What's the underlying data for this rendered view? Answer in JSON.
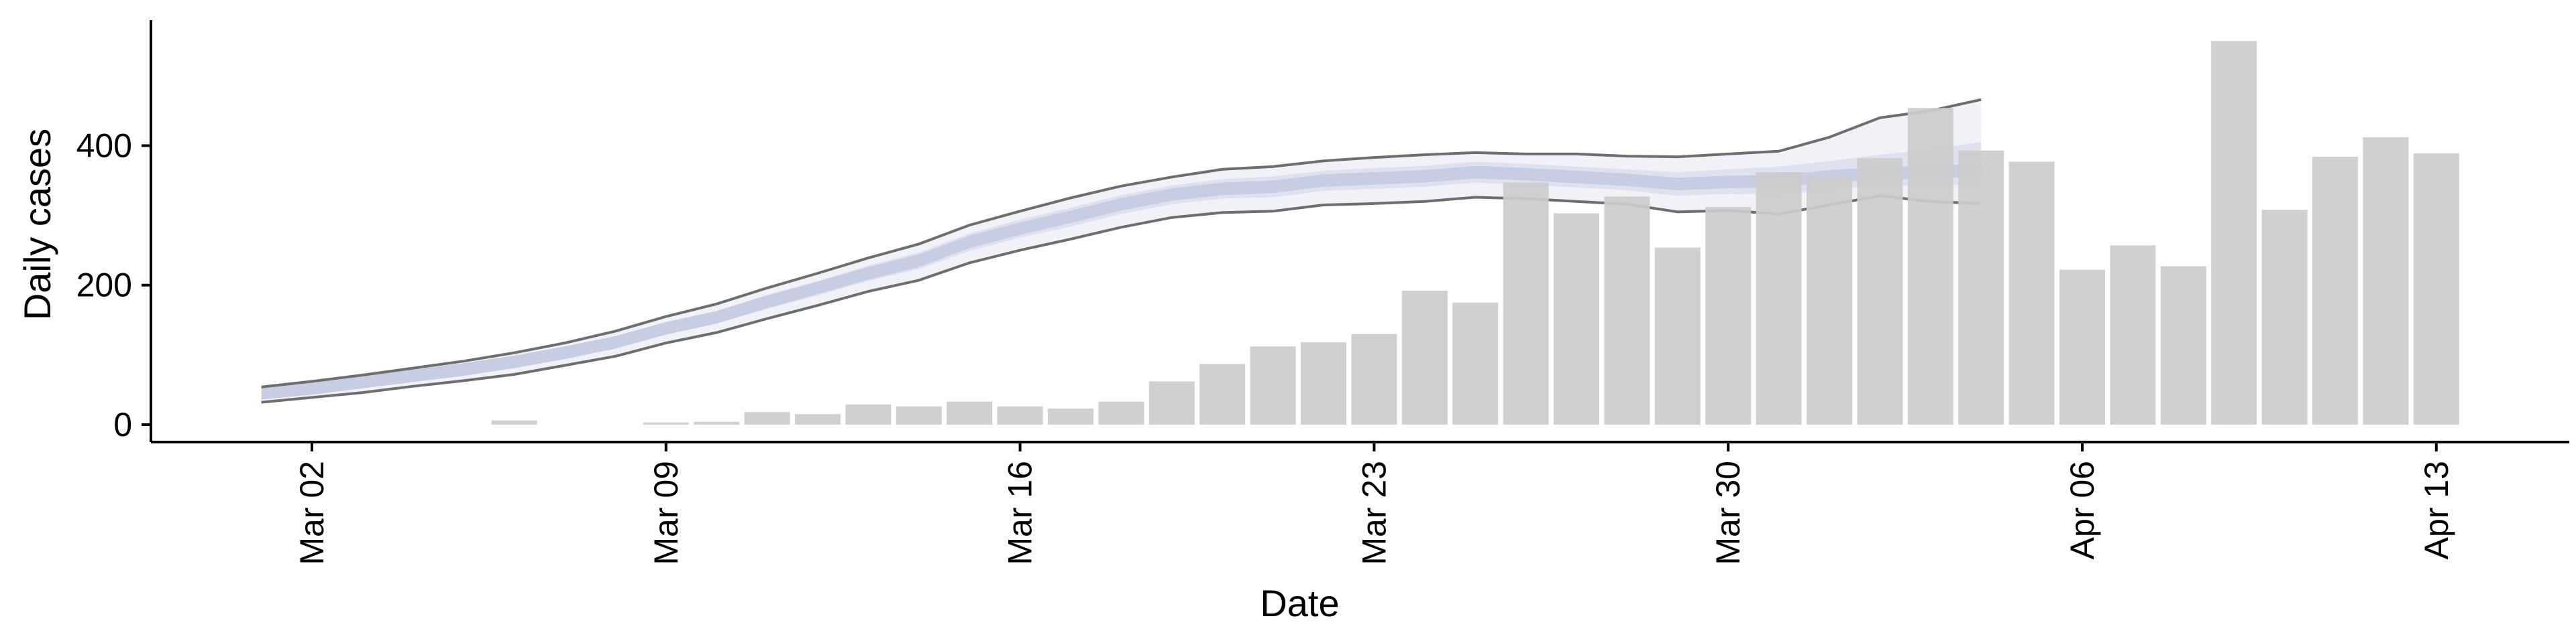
{
  "chart_data": {
    "type": "bar",
    "xlabel": "Date",
    "ylabel": "Daily cases",
    "ylim": [
      -25,
      580
    ],
    "grid": false,
    "y_ticks": [
      0,
      200,
      400
    ],
    "x_ticks": [
      {
        "date": "2020-03-02",
        "label": "Mar 02"
      },
      {
        "date": "2020-03-09",
        "label": "Mar 09"
      },
      {
        "date": "2020-03-16",
        "label": "Mar 16"
      },
      {
        "date": "2020-03-23",
        "label": "Mar 23"
      },
      {
        "date": "2020-03-30",
        "label": "Mar 30"
      },
      {
        "date": "2020-04-06",
        "label": "Apr 06"
      },
      {
        "date": "2020-04-13",
        "label": "Apr 13"
      }
    ],
    "colors": {
      "bars": "#cccccc",
      "band_outer": "#f1f2f7",
      "band_mid": "#dfe2ee",
      "band_inner": "#c7cde2",
      "band_edge": "#6e6e6e"
    },
    "bars": [
      {
        "date": "2020-03-06",
        "value": 6
      },
      {
        "date": "2020-03-09",
        "value": 3
      },
      {
        "date": "2020-03-10",
        "value": 4
      },
      {
        "date": "2020-03-11",
        "value": 18
      },
      {
        "date": "2020-03-12",
        "value": 15
      },
      {
        "date": "2020-03-13",
        "value": 29
      },
      {
        "date": "2020-03-14",
        "value": 26
      },
      {
        "date": "2020-03-15",
        "value": 33
      },
      {
        "date": "2020-03-16",
        "value": 26
      },
      {
        "date": "2020-03-17",
        "value": 23
      },
      {
        "date": "2020-03-18",
        "value": 33
      },
      {
        "date": "2020-03-19",
        "value": 62
      },
      {
        "date": "2020-03-20",
        "value": 87
      },
      {
        "date": "2020-03-21",
        "value": 112
      },
      {
        "date": "2020-03-22",
        "value": 118
      },
      {
        "date": "2020-03-23",
        "value": 130
      },
      {
        "date": "2020-03-24",
        "value": 192
      },
      {
        "date": "2020-03-25",
        "value": 175
      },
      {
        "date": "2020-03-26",
        "value": 347
      },
      {
        "date": "2020-03-27",
        "value": 303
      },
      {
        "date": "2020-03-28",
        "value": 327
      },
      {
        "date": "2020-03-29",
        "value": 254
      },
      {
        "date": "2020-03-30",
        "value": 312
      },
      {
        "date": "2020-03-31",
        "value": 362
      },
      {
        "date": "2020-04-01",
        "value": 356
      },
      {
        "date": "2020-04-02",
        "value": 382
      },
      {
        "date": "2020-04-03",
        "value": 454
      },
      {
        "date": "2020-04-04",
        "value": 393
      },
      {
        "date": "2020-04-05",
        "value": 377
      },
      {
        "date": "2020-04-06",
        "value": 222
      },
      {
        "date": "2020-04-07",
        "value": 257
      },
      {
        "date": "2020-04-08",
        "value": 227
      },
      {
        "date": "2020-04-09",
        "value": 550
      },
      {
        "date": "2020-04-10",
        "value": 308
      },
      {
        "date": "2020-04-11",
        "value": 384
      },
      {
        "date": "2020-04-12",
        "value": 412
      },
      {
        "date": "2020-04-13",
        "value": 389
      }
    ],
    "band": [
      {
        "date": "2020-03-01",
        "lo90": 32,
        "lo50": 40,
        "med": 45,
        "hi50": 50,
        "hi90": 54
      },
      {
        "date": "2020-03-02",
        "lo90": 39,
        "lo50": 47,
        "med": 52,
        "hi50": 57,
        "hi90": 62
      },
      {
        "date": "2020-03-03",
        "lo90": 46,
        "lo50": 55,
        "med": 61,
        "hi50": 66,
        "hi90": 71
      },
      {
        "date": "2020-03-04",
        "lo90": 55,
        "lo50": 64,
        "med": 70,
        "hi50": 76,
        "hi90": 81
      },
      {
        "date": "2020-03-05",
        "lo90": 63,
        "lo50": 73,
        "med": 79,
        "hi50": 85,
        "hi90": 91
      },
      {
        "date": "2020-03-06",
        "lo90": 72,
        "lo50": 83,
        "med": 90,
        "hi50": 96,
        "hi90": 103
      },
      {
        "date": "2020-03-07",
        "lo90": 85,
        "lo50": 96,
        "med": 103,
        "hi50": 110,
        "hi90": 117
      },
      {
        "date": "2020-03-08",
        "lo90": 98,
        "lo50": 110,
        "med": 118,
        "hi50": 125,
        "hi90": 134
      },
      {
        "date": "2020-03-09",
        "lo90": 117,
        "lo50": 129,
        "med": 138,
        "hi50": 146,
        "hi90": 155
      },
      {
        "date": "2020-03-10",
        "lo90": 132,
        "lo50": 145,
        "med": 154,
        "hi50": 163,
        "hi90": 173
      },
      {
        "date": "2020-03-11",
        "lo90": 152,
        "lo50": 166,
        "med": 176,
        "hi50": 186,
        "hi90": 196
      },
      {
        "date": "2020-03-12",
        "lo90": 171,
        "lo50": 185,
        "med": 196,
        "hi50": 206,
        "hi90": 217
      },
      {
        "date": "2020-03-13",
        "lo90": 191,
        "lo50": 206,
        "med": 217,
        "hi50": 228,
        "hi90": 239
      },
      {
        "date": "2020-03-14",
        "lo90": 207,
        "lo50": 223,
        "med": 235,
        "hi50": 247,
        "hi90": 259
      },
      {
        "date": "2020-03-15",
        "lo90": 232,
        "lo50": 249,
        "med": 262,
        "hi50": 274,
        "hi90": 286
      },
      {
        "date": "2020-03-16",
        "lo90": 250,
        "lo50": 268,
        "med": 281,
        "hi50": 294,
        "hi90": 306
      },
      {
        "date": "2020-03-17",
        "lo90": 266,
        "lo50": 284,
        "med": 298,
        "hi50": 311,
        "hi90": 325
      },
      {
        "date": "2020-03-18",
        "lo90": 283,
        "lo50": 302,
        "med": 316,
        "hi50": 329,
        "hi90": 342
      },
      {
        "date": "2020-03-19",
        "lo90": 297,
        "lo50": 316,
        "med": 330,
        "hi50": 343,
        "hi90": 355
      },
      {
        "date": "2020-03-20",
        "lo90": 304,
        "lo50": 324,
        "med": 338,
        "hi50": 352,
        "hi90": 366
      },
      {
        "date": "2020-03-21",
        "lo90": 306,
        "lo50": 326,
        "med": 341,
        "hi50": 356,
        "hi90": 370
      },
      {
        "date": "2020-03-22",
        "lo90": 315,
        "lo50": 335,
        "med": 350,
        "hi50": 364,
        "hi90": 378
      },
      {
        "date": "2020-03-23",
        "lo90": 317,
        "lo50": 338,
        "med": 353,
        "hi50": 368,
        "hi90": 383
      },
      {
        "date": "2020-03-24",
        "lo90": 320,
        "lo50": 341,
        "med": 356,
        "hi50": 371,
        "hi90": 387
      },
      {
        "date": "2020-03-25",
        "lo90": 326,
        "lo50": 347,
        "med": 362,
        "hi50": 377,
        "hi90": 390
      },
      {
        "date": "2020-03-26",
        "lo90": 324,
        "lo50": 344,
        "med": 359,
        "hi50": 374,
        "hi90": 388
      },
      {
        "date": "2020-03-27",
        "lo90": 320,
        "lo50": 340,
        "med": 355,
        "hi50": 370,
        "hi90": 388
      },
      {
        "date": "2020-03-28",
        "lo90": 316,
        "lo50": 336,
        "med": 351,
        "hi50": 366,
        "hi90": 385
      },
      {
        "date": "2020-03-29",
        "lo90": 305,
        "lo50": 328,
        "med": 345,
        "hi50": 362,
        "hi90": 384
      },
      {
        "date": "2020-03-30",
        "lo90": 307,
        "lo50": 331,
        "med": 348,
        "hi50": 366,
        "hi90": 388
      },
      {
        "date": "2020-03-31",
        "lo90": 302,
        "lo50": 330,
        "med": 349,
        "hi50": 370,
        "hi90": 392
      },
      {
        "date": "2020-04-01",
        "lo90": 315,
        "lo50": 338,
        "med": 356,
        "hi50": 378,
        "hi90": 412
      },
      {
        "date": "2020-04-02",
        "lo90": 328,
        "lo50": 342,
        "med": 360,
        "hi50": 387,
        "hi90": 440
      },
      {
        "date": "2020-04-03",
        "lo90": 320,
        "lo50": 343,
        "med": 362,
        "hi50": 395,
        "hi90": 450
      },
      {
        "date": "2020-04-04",
        "lo90": 317,
        "lo50": 344,
        "med": 365,
        "hi50": 405,
        "hi90": 466
      }
    ]
  }
}
